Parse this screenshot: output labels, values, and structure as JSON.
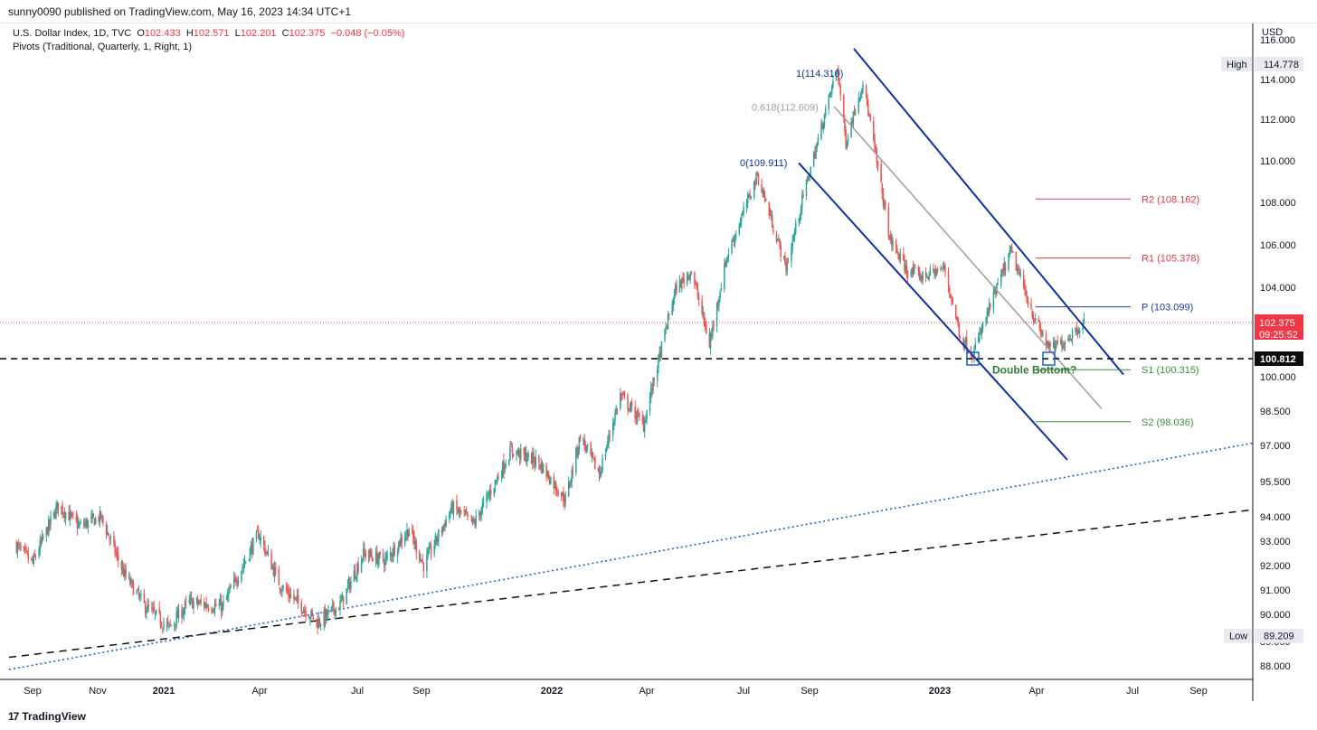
{
  "header": {
    "published": "sunny0090 published on TradingView.com, May 16, 2023 14:34 UTC+1",
    "currency": "USD"
  },
  "legend": {
    "symbol": "U.S. Dollar Index, 1D, TVC",
    "o_label": "O",
    "o": "102.433",
    "h_label": "H",
    "h": "102.571",
    "l_label": "L",
    "l": "102.201",
    "c_label": "C",
    "c": "102.375",
    "change": "−0.048 (−0.05%)",
    "indicator": "Pivots (Traditional, Quarterly, 1, Right, 1)"
  },
  "footer": {
    "brand": "TradingView",
    "logo": "17"
  },
  "colors": {
    "up": "#26a69a",
    "down": "#ef5350",
    "channel": "#0d2fa8",
    "fib": "#9e9e9e",
    "pivot": "#1e3a9e",
    "resistance": "#e0364a",
    "support": "#3c8f3c",
    "trend_blue": "#1f5fd0",
    "trend_black": "#111111",
    "price_badge": "#f23645"
  },
  "chart_data": {
    "type": "candlestick",
    "x_ticks": [
      "Sep",
      "Nov",
      "2021",
      "Apr",
      "Jul",
      "Sep",
      "2022",
      "Apr",
      "Jul",
      "Sep",
      "2023",
      "Apr",
      "Jul",
      "Sep"
    ],
    "x_ticks_bold": [
      "2021",
      "2022",
      "2023"
    ],
    "y_ticks": [
      "116.000",
      "114.000",
      "112.000",
      "110.000",
      "108.000",
      "106.000",
      "104.000",
      "100.000",
      "98.500",
      "97.000",
      "95.500",
      "94.000",
      "93.000",
      "92.000",
      "91.000",
      "90.000",
      "89.000",
      "88.000"
    ],
    "ylim": [
      87.5,
      117
    ],
    "series": [
      {
        "values": [
          [
            "2020-08-15",
            92.9
          ],
          [
            "2020-09-01",
            92.1
          ],
          [
            "2020-09-25",
            94.5
          ],
          [
            "2020-10-15",
            93.6
          ],
          [
            "2020-11-04",
            94.0
          ],
          [
            "2020-11-25",
            91.7
          ],
          [
            "2020-12-15",
            90.3
          ],
          [
            "2021-01-06",
            89.5
          ],
          [
            "2021-01-25",
            90.5
          ],
          [
            "2021-02-25",
            90.3
          ],
          [
            "2021-03-31",
            93.3
          ],
          [
            "2021-04-20",
            91.2
          ],
          [
            "2021-05-25",
            89.7
          ],
          [
            "2021-06-15",
            90.4
          ],
          [
            "2021-07-07",
            92.5
          ],
          [
            "2021-07-28",
            92.2
          ],
          [
            "2021-08-20",
            93.5
          ],
          [
            "2021-09-03",
            92.0
          ],
          [
            "2021-09-30",
            94.4
          ],
          [
            "2021-10-20",
            93.7
          ],
          [
            "2021-11-24",
            96.8
          ],
          [
            "2021-12-20",
            96.3
          ],
          [
            "2022-01-14",
            94.7
          ],
          [
            "2022-01-28",
            97.4
          ],
          [
            "2022-02-15",
            95.8
          ],
          [
            "2022-03-07",
            99.2
          ],
          [
            "2022-03-29",
            97.9
          ],
          [
            "2022-04-28",
            103.9
          ],
          [
            "2022-05-13",
            104.8
          ],
          [
            "2022-05-30",
            101.4
          ],
          [
            "2022-06-15",
            105.4
          ],
          [
            "2022-07-14",
            109.3
          ],
          [
            "2022-08-10",
            104.9
          ],
          [
            "2022-08-29",
            108.9
          ],
          [
            "2022-09-07",
            110.6
          ],
          [
            "2022-09-27",
            114.6
          ],
          [
            "2022-10-05",
            110.9
          ],
          [
            "2022-10-21",
            113.9
          ],
          [
            "2022-11-15",
            106.3
          ],
          [
            "2022-12-01",
            104.8
          ],
          [
            "2022-12-15",
            104.5
          ],
          [
            "2023-01-05",
            104.9
          ],
          [
            "2023-01-20",
            101.8
          ],
          [
            "2023-02-01",
            101.0
          ],
          [
            "2023-03-08",
            105.7
          ],
          [
            "2023-03-31",
            102.4
          ],
          [
            "2023-04-14",
            101.2
          ],
          [
            "2023-04-28",
            101.6
          ],
          [
            "2023-05-16",
            102.4
          ]
        ]
      }
    ],
    "last_price": "102.375",
    "countdown": "09:25:52",
    "level_label": "100.812",
    "high": {
      "label": "High",
      "value": "114.778"
    },
    "low": {
      "label": "Low",
      "value": "89.209"
    },
    "pivots": [
      {
        "label": "R2 (108.162)",
        "value": 108.162
      },
      {
        "label": "R1 (105.378)",
        "value": 105.378
      },
      {
        "label": "P (103.099)",
        "value": 103.099
      },
      {
        "label": "S1 (100.315)",
        "value": 100.315
      },
      {
        "label": "S2 (98.036)",
        "value": 98.036
      }
    ],
    "fib_labels": [
      "1(114.310)",
      "0.618(112.609)",
      "0(109.911)"
    ],
    "annotation": "Double Bottom?"
  }
}
